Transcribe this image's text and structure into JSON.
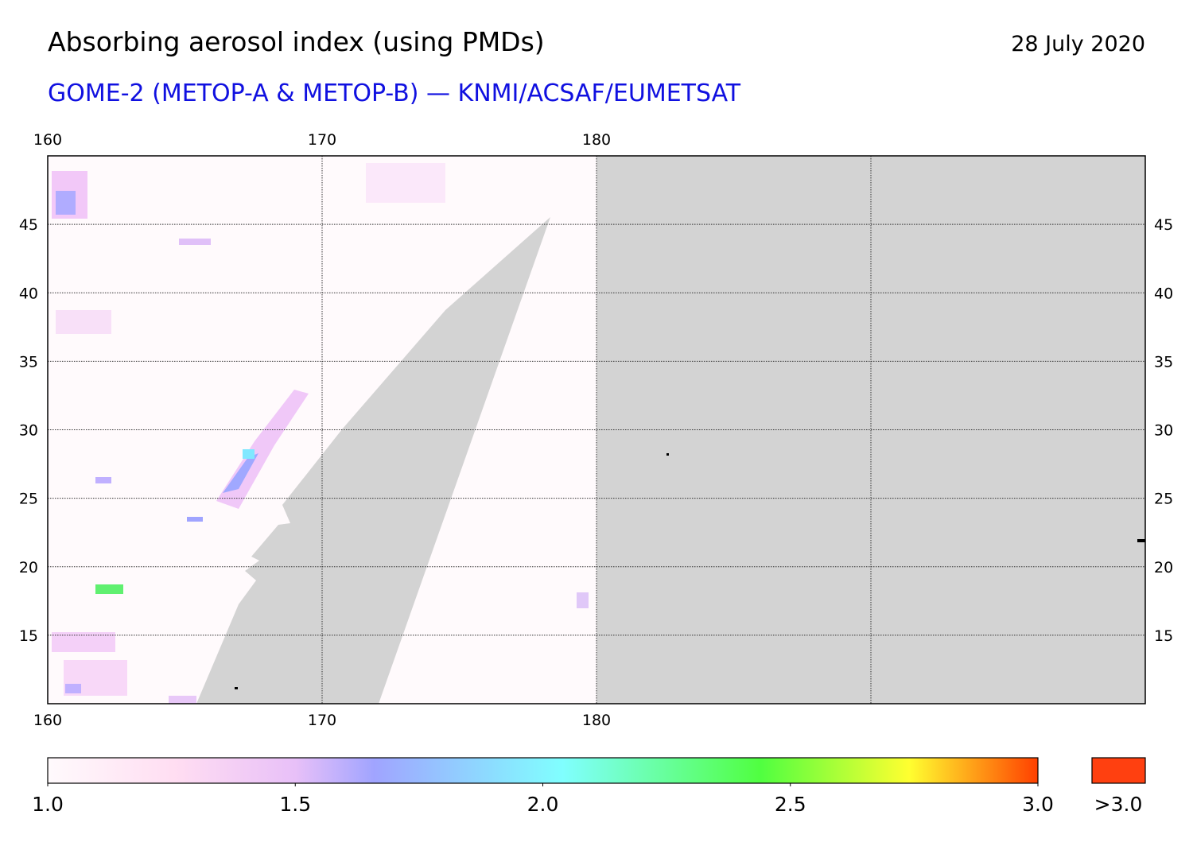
{
  "header": {
    "title": "Absorbing aerosol index (using PMDs)",
    "date": "28 July 2020",
    "subtitle": "GOME-2 (METOP-A & METOP-B) — KNMI/ACSAF/EUMETSAT"
  },
  "map": {
    "lonlim": [
      160,
      200
    ],
    "latlim": [
      10,
      50
    ],
    "lon_ticks": [
      160,
      170,
      180
    ],
    "lon_gridlines": [
      190
    ],
    "lat_ticks": [
      15,
      20,
      25,
      30,
      35,
      40,
      45
    ]
  },
  "colorbar": {
    "lim": [
      1,
      3
    ],
    "ticks": [
      {
        "value": 1,
        "label": "1.0"
      },
      {
        "value": 1.5,
        "label": "1.5"
      },
      {
        "value": 2,
        "label": "2.0"
      },
      {
        "value": 2.5,
        "label": "2.5"
      },
      {
        "value": 3,
        "label": "3.0"
      }
    ],
    "overflow_label": ">3.0"
  }
}
